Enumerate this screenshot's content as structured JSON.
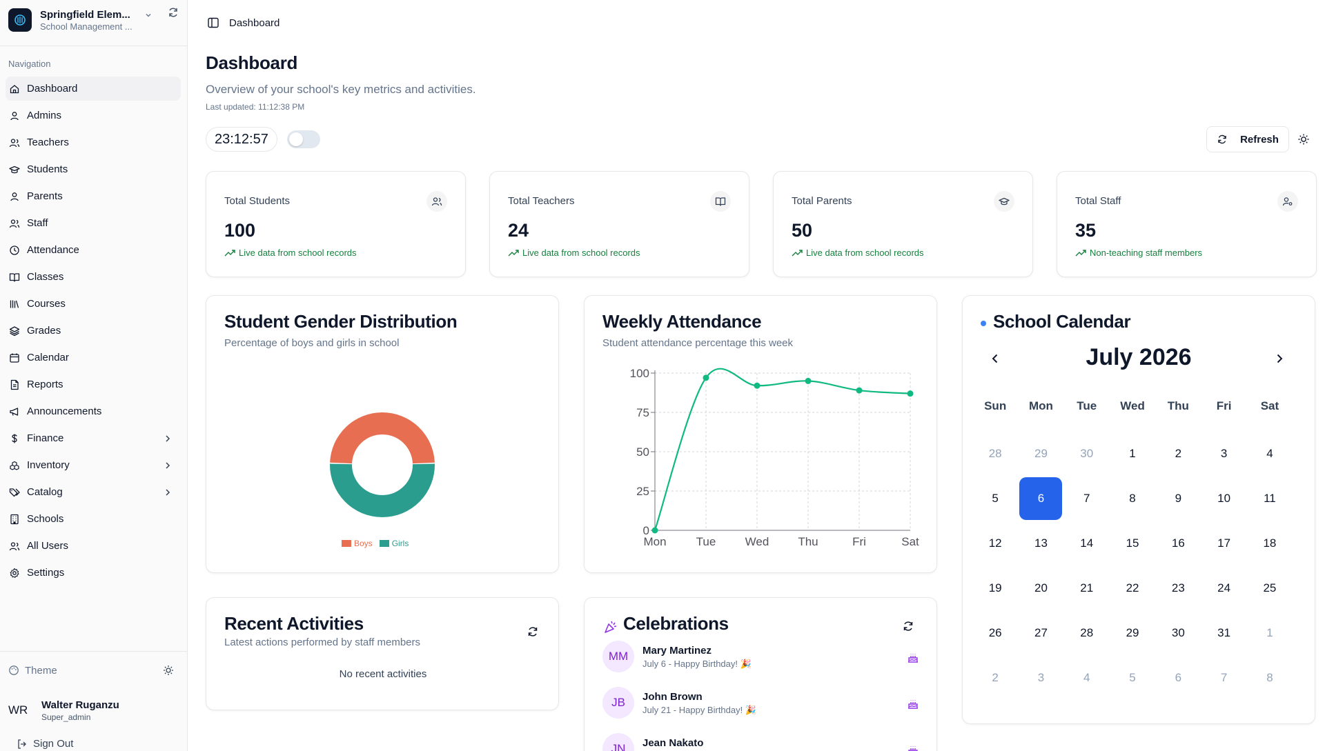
{
  "brand": {
    "name": "Springfield Elem...",
    "subtitle": "School Management ..."
  },
  "nav": {
    "heading": "Navigation",
    "items": [
      {
        "label": "Dashboard",
        "icon": "home-icon",
        "active": true
      },
      {
        "label": "Admins",
        "icon": "user-icon"
      },
      {
        "label": "Teachers",
        "icon": "users-icon"
      },
      {
        "label": "Students",
        "icon": "graduation-cap-icon"
      },
      {
        "label": "Parents",
        "icon": "user-icon"
      },
      {
        "label": "Staff",
        "icon": "users-icon"
      },
      {
        "label": "Attendance",
        "icon": "clock-icon"
      },
      {
        "label": "Classes",
        "icon": "book-open-icon"
      },
      {
        "label": "Courses",
        "icon": "library-icon"
      },
      {
        "label": "Grades",
        "icon": "layers-icon"
      },
      {
        "label": "Calendar",
        "icon": "calendar-icon"
      },
      {
        "label": "Reports",
        "icon": "file-text-icon"
      },
      {
        "label": "Announcements",
        "icon": "megaphone-icon"
      },
      {
        "label": "Finance",
        "icon": "dollar-icon",
        "chevron": true
      },
      {
        "label": "Inventory",
        "icon": "boxes-icon",
        "chevron": true
      },
      {
        "label": "Catalog",
        "icon": "tags-icon",
        "chevron": true
      },
      {
        "label": "Schools",
        "icon": "building-icon"
      },
      {
        "label": "All Users",
        "icon": "users-icon"
      },
      {
        "label": "Settings",
        "icon": "gear-icon"
      }
    ]
  },
  "footer": {
    "theme_label": "Theme",
    "user_initials": "WR",
    "user_name": "Walter Ruganzu",
    "user_role": "Super_admin",
    "signout_label": "Sign Out"
  },
  "topbar": {
    "breadcrumb": "Dashboard"
  },
  "header": {
    "title": "Dashboard",
    "subtitle": "Overview of your school's key metrics and activities.",
    "last_updated": "Last updated: 11:12:38 PM",
    "clock": "23:12:57",
    "refresh_label": "Refresh"
  },
  "stats": [
    {
      "title": "Total Students",
      "value": "100",
      "note": "Live data from school records",
      "icon": "users-icon"
    },
    {
      "title": "Total Teachers",
      "value": "24",
      "note": "Live data from school records",
      "icon": "book-open-icon"
    },
    {
      "title": "Total Parents",
      "value": "50",
      "note": "Live data from school records",
      "icon": "graduation-cap-icon"
    },
    {
      "title": "Total Staff",
      "value": "35",
      "note": "Non-teaching staff members",
      "icon": "user-cog-icon"
    }
  ],
  "gender": {
    "title": "Student Gender Distribution",
    "subtitle": "Percentage of boys and girls in school"
  },
  "attendance": {
    "title": "Weekly Attendance",
    "subtitle": "Student attendance percentage this week"
  },
  "chart_data": [
    {
      "type": "pie",
      "categories": [
        "Boys",
        "Girls"
      ],
      "values": [
        49,
        51
      ],
      "colors": [
        "#e76e50",
        "#2a9d8f"
      ],
      "legend": "bottom"
    },
    {
      "type": "line",
      "x": [
        "Mon",
        "Tue",
        "Wed",
        "Thu",
        "Fri",
        "Sat"
      ],
      "series": [
        {
          "values": [
            0,
            97,
            92,
            95,
            89,
            87
          ],
          "color": "#10b981"
        }
      ],
      "yticks": [
        0,
        25,
        50,
        75,
        100
      ],
      "ylim": [
        0,
        100
      ],
      "grid": true
    }
  ],
  "calendar": {
    "title": "School Calendar",
    "month": "July 2026",
    "weekdays": [
      "Sun",
      "Mon",
      "Tue",
      "Wed",
      "Thu",
      "Fri",
      "Sat"
    ],
    "days": [
      {
        "d": "28",
        "m": true
      },
      {
        "d": "29",
        "m": true
      },
      {
        "d": "30",
        "m": true
      },
      {
        "d": "1"
      },
      {
        "d": "2"
      },
      {
        "d": "3"
      },
      {
        "d": "4"
      },
      {
        "d": "5"
      },
      {
        "d": "6",
        "t": true
      },
      {
        "d": "7"
      },
      {
        "d": "8"
      },
      {
        "d": "9"
      },
      {
        "d": "10"
      },
      {
        "d": "11"
      },
      {
        "d": "12"
      },
      {
        "d": "13"
      },
      {
        "d": "14"
      },
      {
        "d": "15"
      },
      {
        "d": "16"
      },
      {
        "d": "17"
      },
      {
        "d": "18"
      },
      {
        "d": "19"
      },
      {
        "d": "20"
      },
      {
        "d": "21"
      },
      {
        "d": "22"
      },
      {
        "d": "23"
      },
      {
        "d": "24"
      },
      {
        "d": "25"
      },
      {
        "d": "26"
      },
      {
        "d": "27"
      },
      {
        "d": "28"
      },
      {
        "d": "29"
      },
      {
        "d": "30"
      },
      {
        "d": "31"
      },
      {
        "d": "1",
        "m": true
      },
      {
        "d": "2",
        "m": true
      },
      {
        "d": "3",
        "m": true
      },
      {
        "d": "4",
        "m": true
      },
      {
        "d": "5",
        "m": true
      },
      {
        "d": "6",
        "m": true
      },
      {
        "d": "7",
        "m": true
      },
      {
        "d": "8",
        "m": true
      }
    ]
  },
  "recent": {
    "title": "Recent Activities",
    "subtitle": "Latest actions performed by staff members",
    "empty": "No recent activities"
  },
  "celebrations": {
    "title": "Celebrations",
    "items": [
      {
        "initials": "MM",
        "name": "Mary Martinez",
        "desc": "July 6 - Happy Birthday! 🎉"
      },
      {
        "initials": "JB",
        "name": "John Brown",
        "desc": "July 21 - Happy Birthday! 🎉"
      },
      {
        "initials": "JN",
        "name": "Jean Nakato",
        "desc": ""
      }
    ]
  },
  "colors": {
    "accent": "#2563eb",
    "positive": "#15803d",
    "line": "#10b981",
    "boys": "#e76e50",
    "girls": "#2a9d8f"
  }
}
